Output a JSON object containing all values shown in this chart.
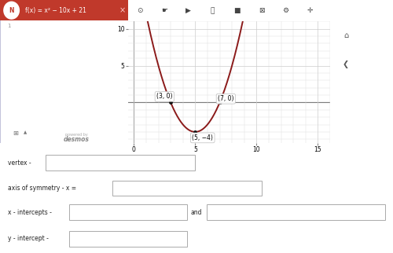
{
  "equation": "f(x) = x² − 10x + 21",
  "curve_color": "#8b1a1a",
  "point_color": "#111111",
  "points": [
    [
      3,
      0
    ],
    [
      7,
      0
    ],
    [
      5,
      -4
    ]
  ],
  "point_labels": [
    "(3, 0)",
    "(7, 0)",
    "(5, −4)"
  ],
  "xmin": -0.5,
  "xmax": 16,
  "ymin": -5.5,
  "ymax": 11,
  "grid_minor_color": "#dddddd",
  "grid_major_color": "#cccccc",
  "bg_graph": "#ffffff",
  "bg_left": "#f7f7f7",
  "bg_form": "#ffffff",
  "header_bg": "#c0392b",
  "toolbar_bg": "#e0e0e0",
  "form_label_color": "#222222",
  "form_field_bg": "#ffffff",
  "form_field_edge": "#aaaaaa",
  "label_fs": 5.5,
  "curve_lw": 1.4
}
